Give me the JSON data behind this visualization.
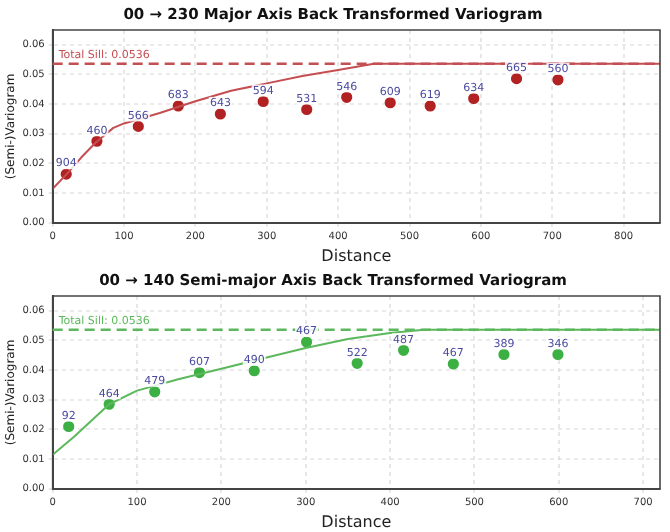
{
  "chart_data": [
    {
      "type": "scatter",
      "title": "00 → 230 Major Axis Back Transformed Variogram",
      "xlabel": "Distance",
      "ylabel": "(Semi-)Variogram",
      "xlim": [
        0,
        851
      ],
      "xticks": [
        0,
        100,
        200,
        300,
        400,
        500,
        600,
        700,
        800
      ],
      "ylim": [
        0,
        0.065
      ],
      "yticks": [
        {
          "value": 0,
          "label": "0.00"
        },
        {
          "value": 0.01,
          "label": "0.01"
        },
        {
          "value": 0.02,
          "label": "0.02"
        },
        {
          "value": 0.03,
          "label": "0.03"
        },
        {
          "value": 0.04,
          "label": "0.04"
        },
        {
          "value": 0.05,
          "label": "0.05"
        },
        {
          "value": 0.06,
          "label": "0.06"
        }
      ],
      "grid": true,
      "series": [
        {
          "type": "line",
          "marker": "none",
          "color": "#c44e52",
          "x": [
            0,
            20,
            40,
            60,
            85,
            100,
            150,
            200,
            250,
            300,
            350,
            400,
            450,
            851
          ],
          "values": [
            0.0115,
            0.0165,
            0.022,
            0.027,
            0.032,
            0.0335,
            0.037,
            0.041,
            0.0445,
            0.047,
            0.0495,
            0.0515,
            0.0536,
            0.0536
          ]
        },
        {
          "marker": "circle",
          "color": "#b22222",
          "x": [
            19,
            62,
            120,
            176,
            235,
            295,
            356,
            412,
            473,
            529,
            590,
            650,
            708
          ],
          "values": [
            0.0164,
            0.0275,
            0.0325,
            0.0394,
            0.0367,
            0.0409,
            0.0382,
            0.0423,
            0.0405,
            0.0394,
            0.0419,
            0.0486,
            0.0482
          ]
        }
      ],
      "annotations": [
        {
          "text": "904",
          "x": 19,
          "y": 0.0164
        },
        {
          "text": "460",
          "x": 62,
          "y": 0.0275
        },
        {
          "text": "566",
          "x": 120,
          "y": 0.0325
        },
        {
          "text": "683",
          "x": 176,
          "y": 0.0394
        },
        {
          "text": "643",
          "x": 235,
          "y": 0.0367
        },
        {
          "text": "594",
          "x": 295,
          "y": 0.0409
        },
        {
          "text": "531",
          "x": 356,
          "y": 0.0382
        },
        {
          "text": "546",
          "x": 412,
          "y": 0.0423
        },
        {
          "text": "609",
          "x": 473,
          "y": 0.0405
        },
        {
          "text": "619",
          "x": 529,
          "y": 0.0394
        },
        {
          "text": "634",
          "x": 590,
          "y": 0.0419
        },
        {
          "text": "665",
          "x": 650,
          "y": 0.0486
        },
        {
          "text": "560",
          "x": 708,
          "y": 0.0482
        }
      ],
      "ref_lines": [
        {
          "axis": "y",
          "value": 0.0536,
          "label": "Total Sill: 0.0536",
          "color": "#c44e52",
          "line_style": "dashed"
        }
      ]
    },
    {
      "type": "scatter",
      "title": "00 → 140 Semi-major Axis Back Transformed Variogram",
      "xlabel": "Distance",
      "ylabel": "(Semi-)Variogram",
      "xlim": [
        0,
        720
      ],
      "xticks": [
        0,
        100,
        200,
        300,
        400,
        500,
        600,
        700
      ],
      "ylim": [
        0,
        0.065
      ],
      "yticks": [
        {
          "value": 0,
          "label": "0.00"
        },
        {
          "value": 0.01,
          "label": "0.01"
        },
        {
          "value": 0.02,
          "label": "0.02"
        },
        {
          "value": 0.03,
          "label": "0.03"
        },
        {
          "value": 0.04,
          "label": "0.04"
        },
        {
          "value": 0.05,
          "label": "0.05"
        },
        {
          "value": 0.06,
          "label": "0.06"
        }
      ],
      "grid": true,
      "series": [
        {
          "type": "line",
          "marker": "none",
          "color": "#5cb85c",
          "x": [
            0,
            25,
            50,
            67,
            100,
            150,
            200,
            250,
            300,
            350,
            400,
            440,
            720
          ],
          "values": [
            0.0115,
            0.0175,
            0.024,
            0.0285,
            0.0331,
            0.037,
            0.0405,
            0.044,
            0.0475,
            0.0505,
            0.0525,
            0.0536,
            0.0536
          ]
        },
        {
          "marker": "circle",
          "color": "#3cb043",
          "x": [
            19,
            67,
            121,
            174,
            239,
            301,
            361,
            416,
            475,
            535,
            599
          ],
          "values": [
            0.021,
            0.0285,
            0.0327,
            0.0392,
            0.0398,
            0.0495,
            0.0423,
            0.0467,
            0.0421,
            0.0453,
            0.0453
          ]
        }
      ],
      "annotations": [
        {
          "text": "92",
          "x": 19,
          "y": 0.021
        },
        {
          "text": "464",
          "x": 67,
          "y": 0.0285
        },
        {
          "text": "479",
          "x": 121,
          "y": 0.0327
        },
        {
          "text": "607",
          "x": 174,
          "y": 0.0392
        },
        {
          "text": "490",
          "x": 239,
          "y": 0.0398
        },
        {
          "text": "467",
          "x": 301,
          "y": 0.0495
        },
        {
          "text": "522",
          "x": 361,
          "y": 0.0423
        },
        {
          "text": "487",
          "x": 416,
          "y": 0.0467
        },
        {
          "text": "467",
          "x": 475,
          "y": 0.0421
        },
        {
          "text": "389",
          "x": 535,
          "y": 0.0453
        },
        {
          "text": "346",
          "x": 599,
          "y": 0.0453
        }
      ],
      "ref_lines": [
        {
          "axis": "y",
          "value": 0.0536,
          "label": "Total Sill: 0.0536",
          "color": "#5cb85c",
          "line_style": "dashed"
        }
      ]
    }
  ]
}
